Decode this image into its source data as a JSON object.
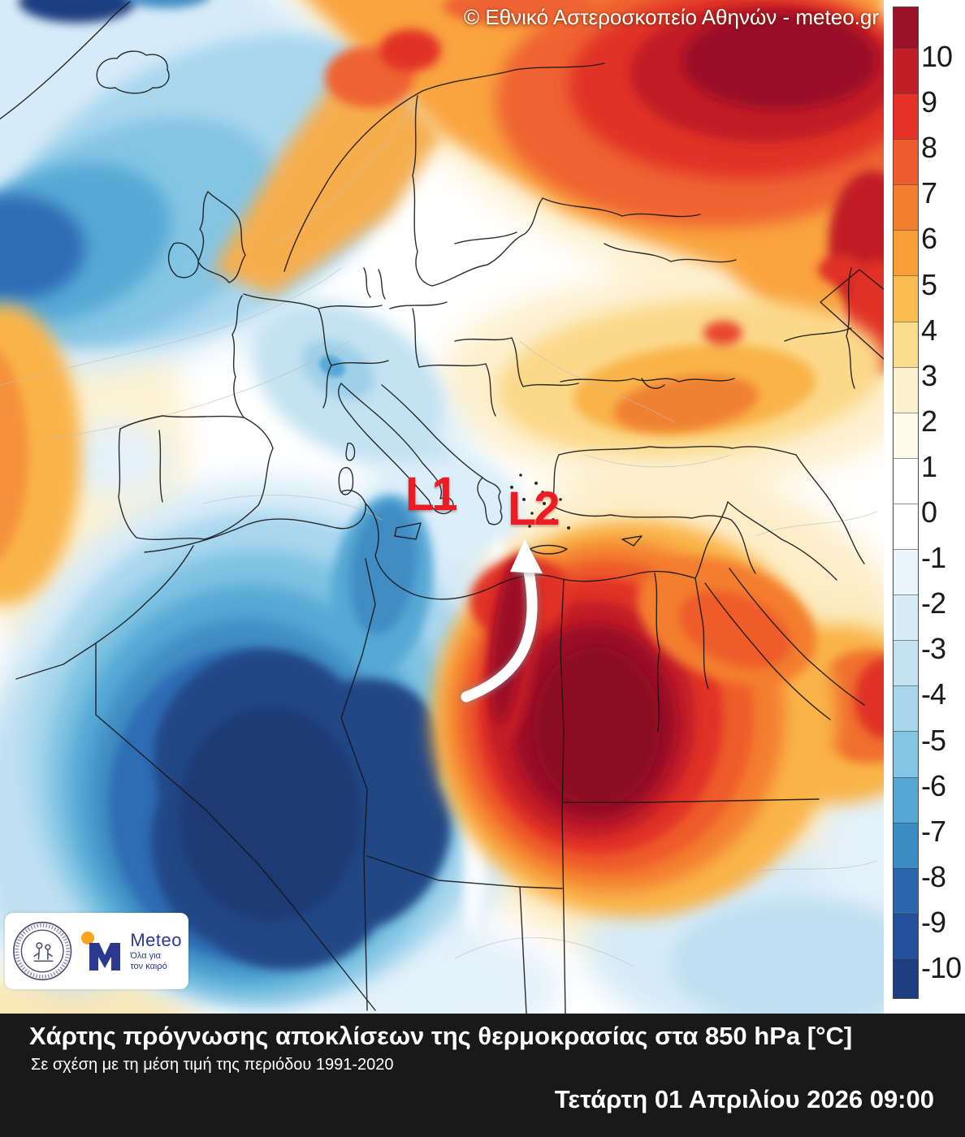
{
  "attribution": {
    "text": "© Εθνικό Αστεροσκοπείο Αθηνών - meteo.gr"
  },
  "map": {
    "lows": [
      {
        "text": "L1"
      },
      {
        "text": "L2"
      }
    ],
    "low_label_color": "#ed1c24",
    "arrow_color": "#ffffff"
  },
  "colorbar": {
    "tick_labels": [
      "10",
      "9",
      "8",
      "7",
      "6",
      "5",
      "4",
      "3",
      "2",
      "1",
      "0",
      "-1",
      "-2",
      "-3",
      "-4",
      "-5",
      "-6",
      "-7",
      "-8",
      "-9",
      "-10"
    ],
    "segment_colors": [
      "#9b1127",
      "#c11f27",
      "#e53127",
      "#ee5b2c",
      "#f37e2d",
      "#f89e36",
      "#fbbd4f",
      "#fadd8c",
      "#fcf1ce",
      "#fefbec",
      "#ffffff",
      "#ffffff",
      "#eaf5fb",
      "#d8ecf8",
      "#c3e2f2",
      "#a8d6ed",
      "#84c5e4",
      "#55a8d4",
      "#3a8dc2",
      "#2b66ae",
      "#25509c",
      "#1e3c80"
    ]
  },
  "logos": {
    "meteo": {
      "name": "Meteo",
      "tagline_line1": "Όλα για",
      "tagline_line2": "τον καιρό",
      "blue": "#2b3990",
      "orange": "#f9a51b"
    }
  },
  "title_bar": {
    "title": "Χάρτης πρόγνωσης αποκλίσεων της θερμοκρασίας στα 850 hPa [°C]",
    "subtitle": "Σε σχέση με τη μέση τιμή της περιόδου 1991-2020",
    "datetime": "Τετάρτη 01 Απριλίου 2026 09:00",
    "background": "#191919"
  }
}
